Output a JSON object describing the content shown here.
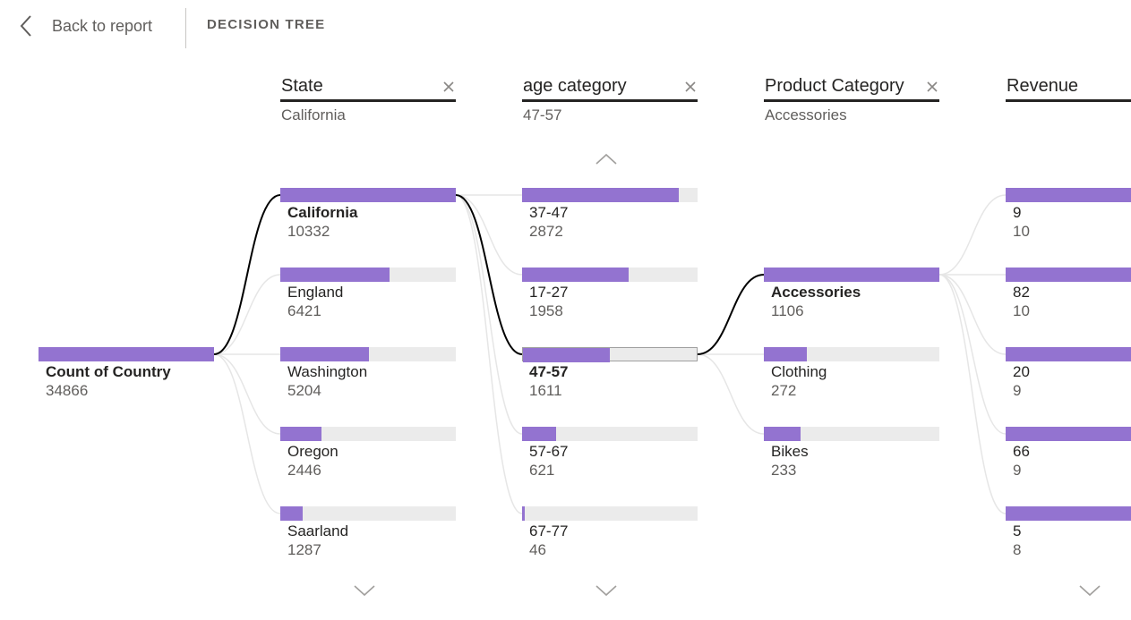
{
  "header": {
    "back_label": "Back to report",
    "title": "DECISION TREE"
  },
  "root": {
    "label": "Count of Country",
    "value": "34866",
    "fraction": 1.0
  },
  "columns": [
    {
      "name": "State",
      "selected": "California",
      "nodes": [
        {
          "label": "California",
          "value": "10332",
          "fraction": 1.0,
          "bold": true
        },
        {
          "label": "England",
          "value": "6421",
          "fraction": 0.621
        },
        {
          "label": "Washington",
          "value": "5204",
          "fraction": 0.504
        },
        {
          "label": "Oregon",
          "value": "2446",
          "fraction": 0.237
        },
        {
          "label": "Saarland",
          "value": "1287",
          "fraction": 0.125
        }
      ]
    },
    {
      "name": "age category",
      "selected": "47-57",
      "nodes": [
        {
          "label": "37-47",
          "value": "2872",
          "fraction": 0.892
        },
        {
          "label": "17-27",
          "value": "1958",
          "fraction": 0.608
        },
        {
          "label": "47-57",
          "value": "1611",
          "fraction": 0.5,
          "bold": true,
          "selected": true
        },
        {
          "label": "57-67",
          "value": "621",
          "fraction": 0.193
        },
        {
          "label": "67-77",
          "value": "46",
          "fraction": 0.014
        }
      ]
    },
    {
      "name": "Product Category",
      "selected": "Accessories",
      "nodes": [
        {
          "label": "Accessories",
          "value": "1106",
          "fraction": 1.0,
          "bold": true
        },
        {
          "label": "Clothing",
          "value": "272",
          "fraction": 0.246
        },
        {
          "label": "Bikes",
          "value": "233",
          "fraction": 0.211
        }
      ]
    },
    {
      "name": "Revenue",
      "nodes": [
        {
          "label": "9",
          "value": "10",
          "fraction": 1.0
        },
        {
          "label": "82",
          "value": "10",
          "fraction": 1.0
        },
        {
          "label": "20",
          "value": "9",
          "fraction": 1.0
        },
        {
          "label": "66",
          "value": "9",
          "fraction": 1.0
        },
        {
          "label": "5",
          "value": "8",
          "fraction": 1.0
        }
      ]
    }
  ],
  "colors": {
    "bar": "#9373d0",
    "track": "#ebebeb",
    "path": "#000000",
    "branch": "#e6e6e6"
  }
}
